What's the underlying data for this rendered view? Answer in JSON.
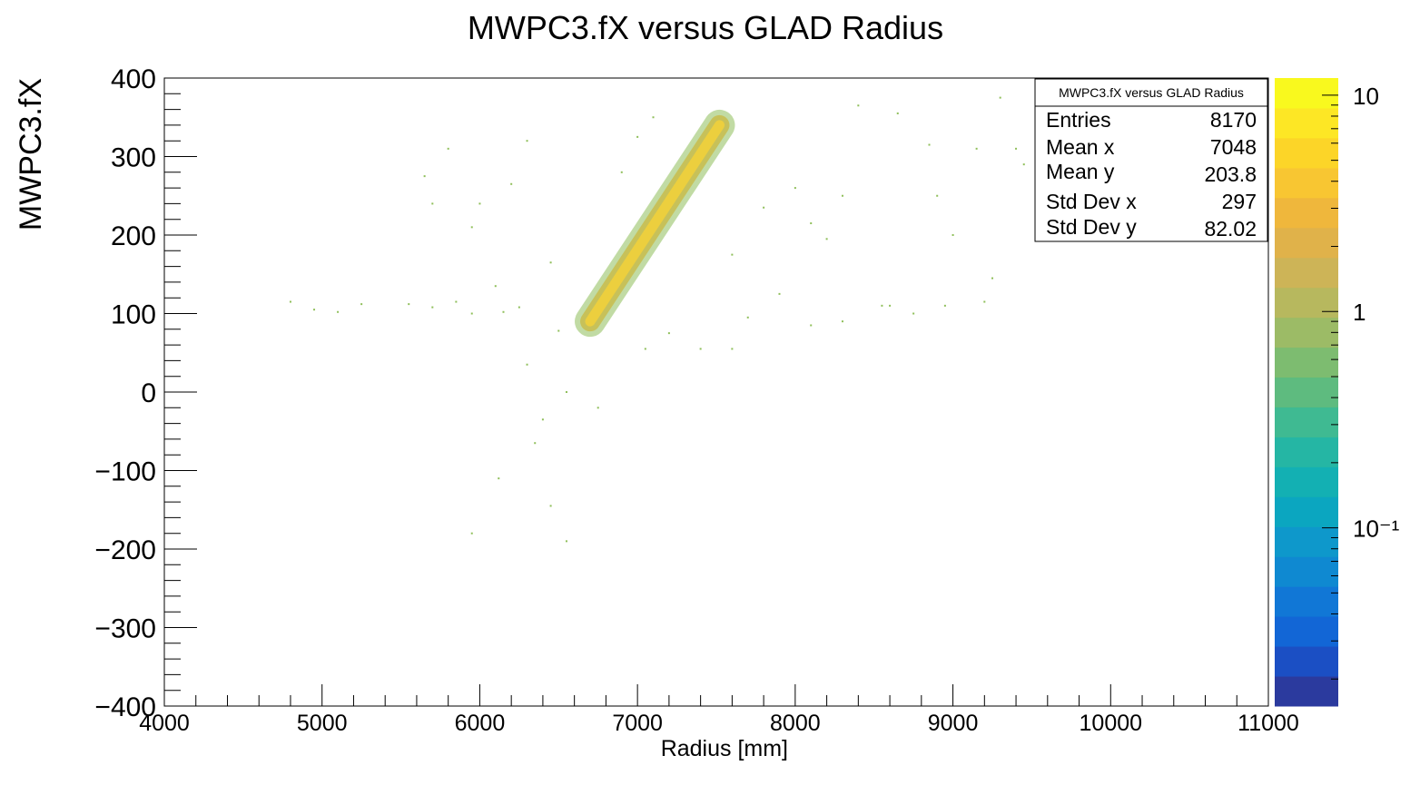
{
  "chart_data": {
    "type": "heatmap",
    "title": "MWPC3.fX versus GLAD Radius",
    "xlabel": "Radius [mm]",
    "ylabel": "MWPC3.fX",
    "xlim": [
      4000,
      11000
    ],
    "ylim": [
      -400,
      400
    ],
    "x_ticks": [
      "4000",
      "5000",
      "6000",
      "7000",
      "8000",
      "9000",
      "10000",
      "11000"
    ],
    "y_ticks": [
      "−400",
      "−300",
      "−200",
      "−100",
      "0",
      "100",
      "200",
      "300",
      "400"
    ],
    "x_tick_values": [
      4000,
      5000,
      6000,
      7000,
      8000,
      9000,
      10000,
      11000
    ],
    "y_tick_values": [
      -400,
      -300,
      -200,
      -100,
      0,
      100,
      200,
      300,
      400
    ],
    "colorbar": {
      "scale": "log",
      "range": [
        0.015,
        12
      ],
      "tick_labels": [
        "10",
        "1",
        "10⁻¹"
      ],
      "tick_values": [
        10,
        1,
        0.1
      ],
      "colors": [
        "#2b3a9e",
        "#1b4fc4",
        "#1266d6",
        "#1177d6",
        "#0f89d1",
        "#0e98cb",
        "#0ba6c0",
        "#13b0b3",
        "#25b6a4",
        "#3fba92",
        "#5ebb7f",
        "#7dbc70",
        "#9cbb66",
        "#b7b85e",
        "#cdb457",
        "#e0b24a",
        "#efb73c",
        "#f8c632",
        "#fcd528",
        "#fde725",
        "#f9f91e"
      ]
    },
    "band": {
      "x_start": 6700,
      "y_start": 90,
      "x_end": 7520,
      "y_end": 340,
      "core_color": "#f3d23a",
      "mid_color": "#c9bd4c",
      "edge_color": "#8fbf5a"
    },
    "scatter": [
      [
        4950,
        105
      ],
      [
        5100,
        102
      ],
      [
        5250,
        112
      ],
      [
        5550,
        112
      ],
      [
        5700,
        108
      ],
      [
        5850,
        115
      ],
      [
        5950,
        100
      ],
      [
        6150,
        102
      ],
      [
        6250,
        108
      ],
      [
        6300,
        35
      ],
      [
        6350,
        -65
      ],
      [
        6400,
        -35
      ],
      [
        6550,
        0
      ],
      [
        6750,
        -20
      ],
      [
        6120,
        -110
      ],
      [
        5950,
        -180
      ],
      [
        6550,
        -190
      ],
      [
        6450,
        -145
      ],
      [
        5800,
        310
      ],
      [
        6300,
        320
      ],
      [
        6200,
        265
      ],
      [
        5650,
        275
      ],
      [
        5700,
        240
      ],
      [
        5950,
        210
      ],
      [
        6450,
        165
      ],
      [
        6500,
        78
      ],
      [
        7050,
        55
      ],
      [
        7200,
        75
      ],
      [
        7400,
        55
      ],
      [
        7600,
        55
      ],
      [
        7700,
        95
      ],
      [
        7900,
        125
      ],
      [
        8100,
        85
      ],
      [
        8300,
        90
      ],
      [
        8550,
        110
      ],
      [
        8750,
        100
      ],
      [
        8900,
        250
      ],
      [
        8300,
        250
      ],
      [
        8100,
        215
      ],
      [
        9000,
        200
      ],
      [
        9450,
        290
      ],
      [
        9400,
        310
      ],
      [
        9150,
        310
      ],
      [
        8850,
        315
      ],
      [
        8400,
        365
      ],
      [
        8650,
        355
      ],
      [
        9300,
        375
      ],
      [
        9700,
        355
      ],
      [
        9550,
        335
      ],
      [
        9900,
        315
      ],
      [
        10100,
        275
      ],
      [
        10300,
        290
      ],
      [
        9250,
        145
      ],
      [
        9200,
        115
      ],
      [
        8950,
        110
      ],
      [
        8600,
        110
      ],
      [
        8000,
        260
      ],
      [
        8200,
        195
      ],
      [
        7800,
        235
      ],
      [
        7600,
        175
      ],
      [
        7000,
        325
      ],
      [
        7100,
        350
      ],
      [
        6900,
        280
      ],
      [
        6000,
        240
      ],
      [
        6100,
        135
      ],
      [
        4800,
        115
      ]
    ],
    "stats": {
      "title": "MWPC3.fX versus GLAD Radius",
      "rows": [
        {
          "label": "Entries",
          "value": "8170"
        },
        {
          "label": "Mean x",
          "value": "7048"
        },
        {
          "label": "Mean y",
          "value": "203.8"
        },
        {
          "label": "Std Dev x",
          "value": "297"
        },
        {
          "label": "Std Dev y",
          "value": "82.02"
        }
      ]
    }
  }
}
